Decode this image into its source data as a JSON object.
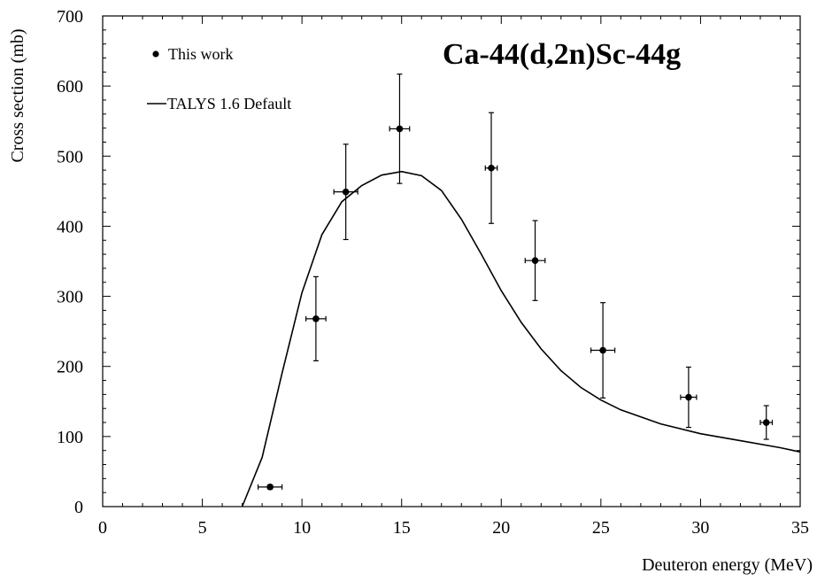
{
  "chart_data": {
    "type": "scatter",
    "title": "Ca-44(d,2n)Sc-44g",
    "xlabel": "Deuteron energy (MeV)",
    "ylabel": "Cross section (mb)",
    "xlim": [
      0,
      35
    ],
    "ylim": [
      0,
      700
    ],
    "x_ticks": [
      0,
      5,
      10,
      15,
      20,
      25,
      30,
      35
    ],
    "y_ticks": [
      0,
      100,
      200,
      300,
      400,
      500,
      600,
      700
    ],
    "grid": false,
    "legend_position": "top-left",
    "series": [
      {
        "name": "This work",
        "kind": "points-with-errorbars",
        "color": "#000000",
        "points": [
          {
            "x": 8.4,
            "y": 28,
            "xerr": 0.6,
            "yerr": 3
          },
          {
            "x": 10.7,
            "y": 268,
            "xerr": 0.5,
            "yerr": 60
          },
          {
            "x": 12.2,
            "y": 449,
            "xerr": 0.6,
            "yerr": 68
          },
          {
            "x": 14.9,
            "y": 539,
            "xerr": 0.5,
            "yerr": 78
          },
          {
            "x": 19.5,
            "y": 483,
            "xerr": 0.3,
            "yerr": 79
          },
          {
            "x": 21.7,
            "y": 351,
            "xerr": 0.5,
            "yerr": 57
          },
          {
            "x": 25.1,
            "y": 223,
            "xerr": 0.6,
            "yerr": 68
          },
          {
            "x": 29.4,
            "y": 156,
            "xerr": 0.4,
            "yerr": 43
          },
          {
            "x": 33.3,
            "y": 120,
            "xerr": 0.3,
            "yerr": 24
          }
        ]
      },
      {
        "name": "TALYS 1.6 Default",
        "kind": "line",
        "color": "#000000",
        "x": [
          7,
          8,
          9,
          10,
          11,
          12,
          13,
          14,
          15,
          16,
          17,
          18,
          19,
          20,
          21,
          22,
          23,
          24,
          25,
          26,
          28,
          30,
          32,
          34,
          35
        ],
        "y": [
          0,
          70,
          190,
          305,
          388,
          435,
          458,
          473,
          478,
          472,
          451,
          410,
          360,
          308,
          263,
          225,
          194,
          170,
          152,
          138,
          118,
          104,
          94,
          84,
          78
        ]
      }
    ]
  }
}
